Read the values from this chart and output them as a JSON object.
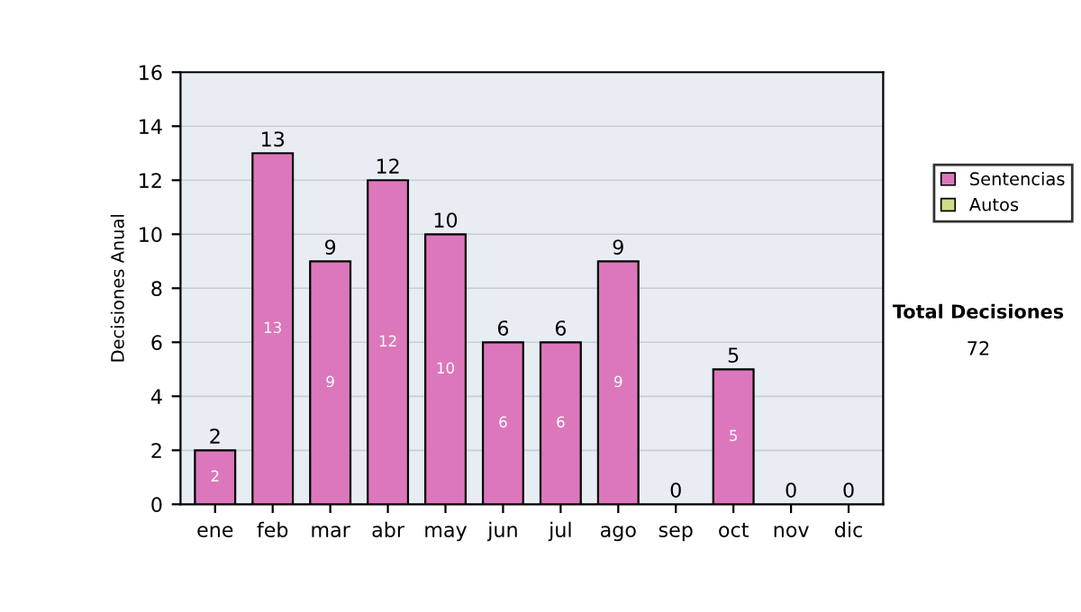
{
  "chart_data": {
    "type": "bar",
    "stacked": true,
    "ylabel": "Decisiones Anual",
    "categories": [
      "ene",
      "feb",
      "mar",
      "abr",
      "may",
      "jun",
      "jul",
      "ago",
      "sep",
      "oct",
      "nov",
      "dic"
    ],
    "series": [
      {
        "name": "Sentencias",
        "color": "#dd77bb",
        "values": [
          2,
          13,
          9,
          12,
          10,
          6,
          6,
          9,
          0,
          5,
          0,
          0
        ],
        "value_labels": [
          "2",
          "13",
          "9",
          "12",
          "10",
          "6",
          "6",
          "9",
          null,
          "5",
          null,
          null
        ]
      },
      {
        "name": "Autos",
        "color": "#ccdd88",
        "values": [
          0,
          0,
          0,
          0,
          0,
          0,
          0,
          0,
          0,
          0,
          0,
          0
        ]
      }
    ],
    "totals": [
      "2",
      "13",
      "9",
      "12",
      "10",
      "6",
      "6",
      "9",
      "0",
      "5",
      "0",
      "0"
    ],
    "ylim": [
      0,
      16
    ],
    "yticks": [
      0,
      2,
      4,
      6,
      8,
      10,
      12,
      14,
      16
    ],
    "grid": "y",
    "legend": "right",
    "annotations": [
      "Total Decisiones",
      "72"
    ]
  }
}
